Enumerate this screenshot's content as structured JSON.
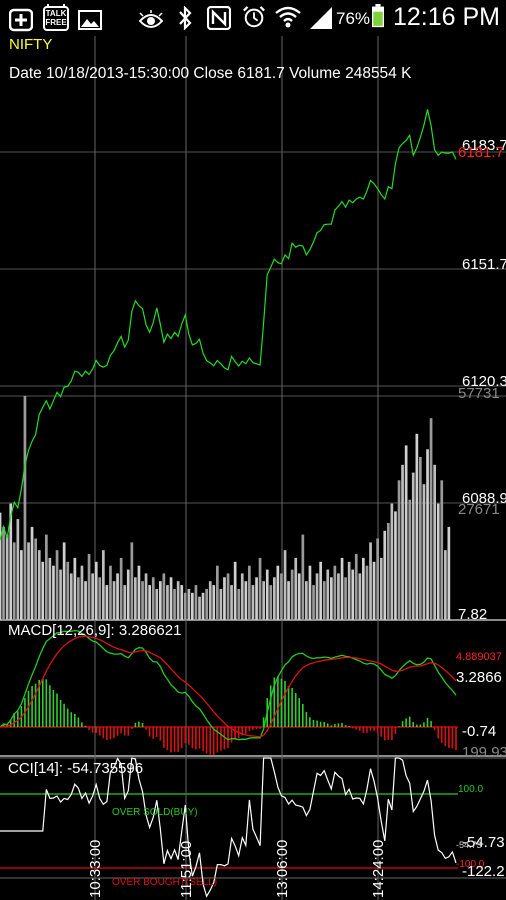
{
  "status_bar": {
    "battery": "76%",
    "time": "12:16 PM",
    "icons": [
      "add-icon",
      "talk-free-icon",
      "image-icon",
      "eye-icon",
      "bluetooth-icon",
      "nfc-icon",
      "alarm-icon",
      "wifi-icon",
      "signal-icon",
      "battery-icon"
    ],
    "talk_free_line1": "TALK",
    "talk_free_line2": "FREE"
  },
  "header": {
    "symbol": "NIFTY",
    "info": "Date 10/18/2013-15:30:00 Close 6181.7 Volume 248554 K"
  },
  "colors": {
    "price_line": "#22dd22",
    "macd_line": "#22cc22",
    "signal_line": "#e01010",
    "histogram_pos": "#33cc33",
    "histogram_neg": "#dd1111",
    "cci_line": "#ffffff",
    "overbought": "#dd1111",
    "oversold": "#22cc22",
    "symbol": "#ffff33",
    "price_alert": "#ff2222"
  },
  "price_panel": {
    "price_labels": [
      "6183.7",
      "6151.7",
      "6120.3",
      "6088.9"
    ],
    "current_price_overlay": "6181.7",
    "volume_labels": [
      "57731",
      "27671",
      "7.82"
    ]
  },
  "macd_panel": {
    "title": "MACD[12,26,9]: 3.286621",
    "signal_value": "4.889037",
    "macd_value": "3.2866",
    "low_label": "-0.74"
  },
  "cci_panel": {
    "prev_top_label": "199.93",
    "title": "CCI[14]: -54.735596",
    "upper_level": "100.0",
    "lower_level": "-100.0",
    "oversold_label": "OVER SOLD(BUY)",
    "overbought_label": "OVER BOUGHT(SELL)",
    "value_label": "-54.73",
    "value_label2": "-54.73",
    "bottom_label": "-122.2"
  },
  "time_axis": [
    "10:33:00",
    "11:51:00",
    "13:06:00",
    "14:24:00"
  ],
  "chart_data": {
    "type": "line",
    "title": "NIFTY",
    "series": [
      {
        "name": "NIFTY",
        "values": [
          6078.8,
          6082.5,
          6079.4,
          6085.3,
          6089.1,
          6087.6,
          6092.7,
          6099.0,
          6103.1,
          6105.6,
          6107.4,
          6112.8,
          6114.8,
          6116.5,
          6114.3,
          6116.5,
          6118.8,
          6117.6,
          6120.2,
          6120.4,
          6121.9,
          6124.5,
          6124.2,
          6123.1,
          6124.5,
          6123.6,
          6125.1,
          6127.4,
          6126.0,
          6125.6,
          6126.1,
          6128.8,
          6130.0,
          6132.2,
          6133.9,
          6131.0,
          6132.9,
          6140.6,
          6143.5,
          6142.2,
          6141.4,
          6137.0,
          6135.0,
          6137.6,
          6141.6,
          6137.2,
          6132.3,
          6134.5,
          6133.3,
          6135.0,
          6133.9,
          6137.2,
          6139.7,
          6134.5,
          6131.6,
          6132.0,
          6133.1,
          6129.3,
          6127.4,
          6126.7,
          6126.0,
          6127.4,
          6126.5,
          6125.4,
          6124.9,
          6128.5,
          6127.1,
          6125.9,
          6127.2,
          6126.5,
          6128.1,
          6126.8,
          6126.5,
          6126.2,
          6137.6,
          6150.5,
          6152.6,
          6154.8,
          6153.8,
          6153.5,
          6155.9,
          6154.9,
          6159.1,
          6158.0,
          6158.5,
          6158.3,
          6155.9,
          6157.3,
          6159.4,
          6161.9,
          6162.5,
          6164.1,
          6164.2,
          6164.2,
          6168.0,
          6169.0,
          6170.3,
          6168.8,
          6170.7,
          6170.0,
          6171.0,
          6171.5,
          6171.0,
          6173.1,
          6176.0,
          6175.1,
          6173.8,
          6172.2,
          6171.0,
          6174.3,
          6173.8,
          6180.5,
          6184.8,
          6186.0,
          6186.8,
          6188.2,
          6182.8,
          6184.8,
          6187.7,
          6190.9,
          6195.2,
          6190.8,
          6184.3,
          6182.8,
          6183.7,
          6183.4,
          6183.4,
          6183.7,
          6181.7
        ]
      },
      {
        "name": "Volume",
        "values": [
          27671,
          24000,
          22000,
          30000,
          20000,
          26000,
          18000,
          57731,
          20000,
          24000,
          21000,
          18000,
          15000,
          22000,
          16000,
          14000,
          18000,
          13000,
          20000,
          15000,
          12000,
          16000,
          11000,
          14000,
          10000,
          17000,
          12000,
          15000,
          11000,
          18000,
          9000,
          14000,
          10000,
          12000,
          16000,
          9000,
          13000,
          20000,
          11000,
          14000,
          10000,
          12000,
          9000,
          11000,
          8000,
          10000,
          12000,
          9000,
          11000,
          8000,
          10000,
          9000,
          7000,
          8000,
          7000,
          9000,
          6000,
          7000,
          8000,
          10000,
          9000,
          14000,
          8000,
          11000,
          12000,
          9000,
          15000,
          8000,
          12000,
          10000,
          14000,
          9000,
          11000,
          16000,
          10000,
          13000,
          9000,
          11000,
          14000,
          12000,
          18000,
          10000,
          13000,
          16000,
          12000,
          22000,
          10000,
          14000,
          9000,
          12000,
          15000,
          10000,
          13000,
          11000,
          14000,
          12000,
          16000,
          11000,
          15000,
          13000,
          17000,
          12000,
          16000,
          14000,
          20000,
          15000,
          21000,
          16000,
          23000,
          25000,
          30000,
          28000,
          36000,
          40000,
          45000,
          31000,
          38000,
          48000,
          42000,
          35000,
          44000,
          52000,
          40000,
          30000,
          36000,
          18000,
          24000
        ]
      }
    ]
  }
}
